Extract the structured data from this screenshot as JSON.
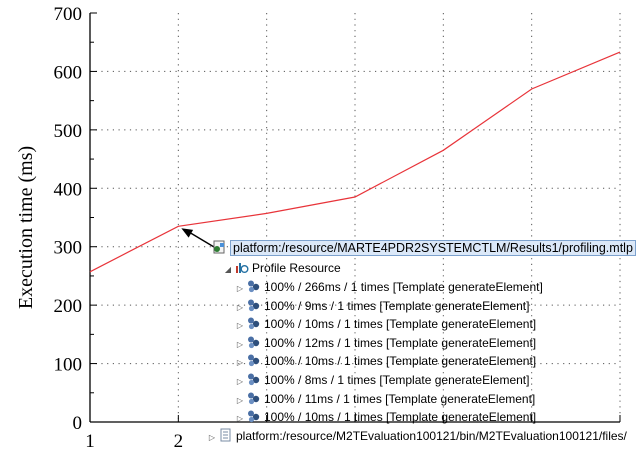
{
  "chart_data": {
    "type": "line",
    "x": [
      1,
      2,
      3,
      4,
      5,
      6,
      7
    ],
    "series": [
      {
        "values": [
          257,
          335,
          357,
          385,
          465,
          570,
          633
        ],
        "color": "#e8343a"
      }
    ],
    "xlim": [
      1,
      7
    ],
    "ylim": [
      0,
      700
    ],
    "x_ticks": [
      1,
      2
    ],
    "y_ticks": [
      0,
      100,
      200,
      300,
      400,
      500,
      600,
      700
    ],
    "ylabel": "Execution time (ms)",
    "xlabel": "",
    "grid": "dotted"
  },
  "overlay": {
    "root_label": "platform:/resource/MARTE4PDR2SYSTEMCTLM/Results1/profiling.mtlp",
    "profile_label": "Profile Resource",
    "entries": [
      "100% / 266ms / 1 times [Template generateElement]",
      "100% / 9ms / 1 times [Template generateElement]",
      "100% / 10ms / 1 times [Template generateElement]",
      "100% / 12ms / 1 times [Template generateElement]",
      "100% / 10ms / 1 times [Template generateElement]",
      "100% / 8ms / 1 times [Template generateElement]",
      "100% / 11ms / 1 times [Template generateElement]",
      "100% / 10ms / 1 times [Template generateElement]"
    ],
    "file_label": "platform:/resource/M2TEvaluation100121/bin/M2TEvaluation100121/files/"
  }
}
